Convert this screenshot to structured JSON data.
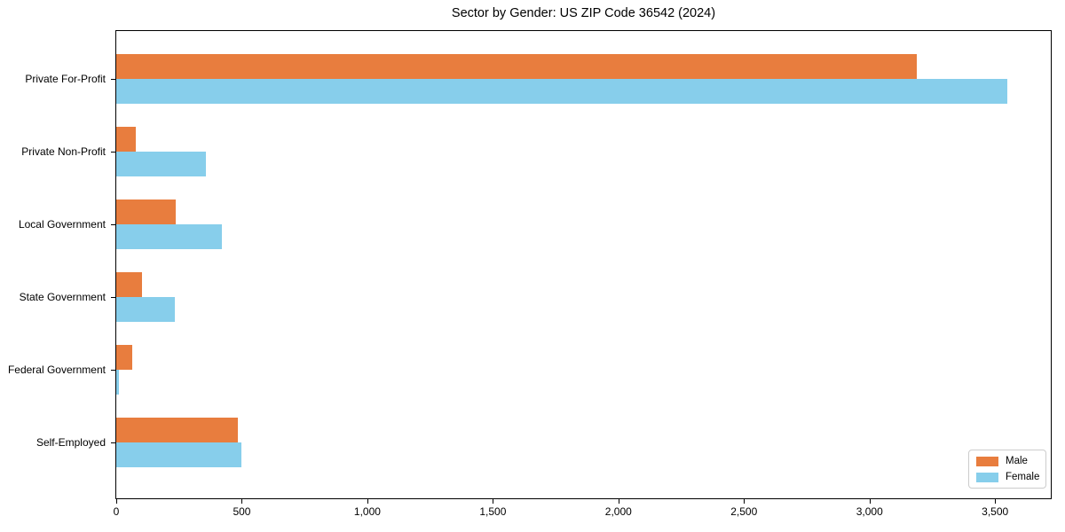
{
  "chart_data": {
    "type": "bar",
    "orientation": "horizontal",
    "title": "Sector by Gender: US ZIP Code 36542 (2024)",
    "categories": [
      "Private For-Profit",
      "Private Non-Profit",
      "Local Government",
      "State Government",
      "Federal Government",
      "Self-Employed"
    ],
    "series": [
      {
        "name": "Male",
        "color": "#e87d3e",
        "values": [
          3190,
          76,
          238,
          104,
          62,
          485
        ]
      },
      {
        "name": "Female",
        "color": "#87ceeb",
        "values": [
          3550,
          358,
          422,
          235,
          12,
          498
        ]
      }
    ],
    "xlabel": "",
    "ylabel": "",
    "xlim": [
      0,
      3722
    ],
    "xticks": [
      0,
      500,
      1000,
      1500,
      2000,
      2500,
      3000,
      3500
    ],
    "xtick_labels": [
      "0",
      "500",
      "1,000",
      "1,500",
      "2,000",
      "2,500",
      "3,000",
      "3,500"
    ],
    "grid": false,
    "legend": {
      "position": "lower right"
    }
  },
  "colors": {
    "background": "#ffffff",
    "axis": "#000000",
    "legend_border": "#cccccc"
  }
}
